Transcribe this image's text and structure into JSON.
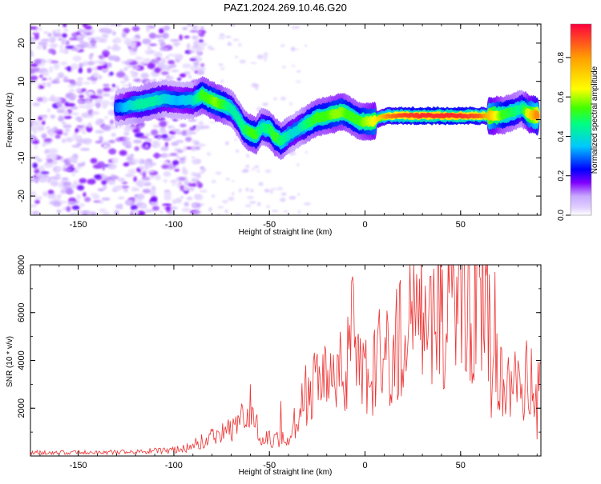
{
  "title": "PAZ1.2024.269.10.46.G20",
  "chart_data": [
    {
      "type": "heatmap",
      "xlabel": "Height of straight line (km)",
      "ylabel": "Frequency (Hz)",
      "xlim": [
        -175,
        92
      ],
      "ylim": [
        -25,
        25
      ],
      "xticks": [
        -150,
        -100,
        -50,
        0,
        50
      ],
      "yticks": [
        -20,
        -10,
        0,
        10,
        20
      ],
      "grid": false,
      "colorbar": {
        "label": "Normalized spectral amplitude",
        "range": [
          0,
          0.97
        ],
        "ticks": [
          "0.0",
          "0.2",
          "0.4",
          "0.6",
          "0.8"
        ],
        "colormap": [
          "#ffffff",
          "#c8a8ff",
          "#8000ff",
          "#0000ff",
          "#00c8ff",
          "#00ff80",
          "#40ff00",
          "#ffff00",
          "#ffa000",
          "#ff0040"
        ]
      },
      "ridge_points": [
        [
          -130,
          3.0,
          0.3
        ],
        [
          -122,
          3.8,
          0.4
        ],
        [
          -118,
          4.0,
          0.45
        ],
        [
          -110,
          5.0,
          0.45
        ],
        [
          -105,
          5.5,
          0.4
        ],
        [
          -98,
          5.0,
          0.35
        ],
        [
          -90,
          5.0,
          0.4
        ],
        [
          -85,
          6.5,
          0.55
        ],
        [
          -82,
          5.5,
          0.55
        ],
        [
          -78,
          4.5,
          0.6
        ],
        [
          -75,
          4.0,
          0.55
        ],
        [
          -70,
          3.0,
          0.45
        ],
        [
          -66,
          0.0,
          0.45
        ],
        [
          -63,
          -2.5,
          0.5
        ],
        [
          -60,
          -3.5,
          0.55
        ],
        [
          -57,
          -4.0,
          0.55
        ],
        [
          -54,
          -2.0,
          0.45
        ],
        [
          -50,
          -2.5,
          0.5
        ],
        [
          -47,
          -4.5,
          0.55
        ],
        [
          -44,
          -5.5,
          0.5
        ],
        [
          -41,
          -4.5,
          0.45
        ],
        [
          -38,
          -3.5,
          0.4
        ],
        [
          -35,
          -2.5,
          0.4
        ],
        [
          -30,
          -1.0,
          0.5
        ],
        [
          -25,
          0.5,
          0.55
        ],
        [
          -20,
          1.0,
          0.55
        ],
        [
          -16,
          1.5,
          0.6
        ],
        [
          -12,
          2.0,
          0.6
        ],
        [
          -9,
          1.5,
          0.55
        ],
        [
          -6,
          0.5,
          0.55
        ],
        [
          -3,
          -0.5,
          0.55
        ],
        [
          0,
          -0.5,
          0.6
        ],
        [
          4,
          -0.5,
          0.65
        ],
        [
          8,
          0.5,
          0.75
        ],
        [
          12,
          1.0,
          0.85
        ],
        [
          20,
          1.0,
          0.92
        ],
        [
          30,
          1.0,
          0.95
        ],
        [
          40,
          1.0,
          0.95
        ],
        [
          50,
          1.0,
          0.95
        ],
        [
          60,
          1.0,
          0.9
        ],
        [
          66,
          1.0,
          0.75
        ],
        [
          72,
          1.2,
          0.55
        ],
        [
          78,
          2.0,
          0.5
        ],
        [
          82,
          3.0,
          0.45
        ],
        [
          86,
          1.5,
          0.7
        ],
        [
          90,
          1.0,
          0.85
        ]
      ]
    },
    {
      "type": "line",
      "xlabel": "Height of straight line (km)",
      "ylabel": "SNR (10 * v/v)",
      "xlim": [
        -175,
        92
      ],
      "ylim": [
        0,
        8000
      ],
      "xticks": [
        -150,
        -100,
        -50,
        0,
        50
      ],
      "yticks": [
        2000,
        4000,
        6000,
        8000
      ],
      "grid": false,
      "color": "#ee3333",
      "envelope": [
        [
          -175,
          150
        ],
        [
          -150,
          150
        ],
        [
          -120,
          180
        ],
        [
          -100,
          250
        ],
        [
          -95,
          300
        ],
        [
          -90,
          450
        ],
        [
          -85,
          600
        ],
        [
          -80,
          800
        ],
        [
          -75,
          900
        ],
        [
          -70,
          1200
        ],
        [
          -65,
          1400
        ],
        [
          -60,
          1800
        ],
        [
          -57,
          1200
        ],
        [
          -54,
          900
        ],
        [
          -50,
          700
        ],
        [
          -45,
          700
        ],
        [
          -40,
          600
        ],
        [
          -37,
          1500
        ],
        [
          -33,
          2500
        ],
        [
          -30,
          2600
        ],
        [
          -25,
          2900
        ],
        [
          -20,
          3200
        ],
        [
          -15,
          3600
        ],
        [
          -10,
          4000
        ],
        [
          -6,
          5500
        ],
        [
          -3,
          3200
        ],
        [
          0,
          3400
        ],
        [
          5,
          3800
        ],
        [
          10,
          4200
        ],
        [
          15,
          4600
        ],
        [
          20,
          5000
        ],
        [
          25,
          5300
        ],
        [
          30,
          5600
        ],
        [
          35,
          5900
        ],
        [
          40,
          6100
        ],
        [
          45,
          6200
        ],
        [
          50,
          6300
        ],
        [
          55,
          6400
        ],
        [
          60,
          6600
        ],
        [
          63,
          6900
        ],
        [
          65,
          6000
        ],
        [
          68,
          5500
        ],
        [
          70,
          3000
        ],
        [
          75,
          2800
        ],
        [
          80,
          3000
        ],
        [
          85,
          3200
        ],
        [
          90,
          3000
        ],
        [
          92,
          3000
        ]
      ],
      "spikes": [
        [
          -60,
          3000
        ],
        [
          -44,
          2300
        ],
        [
          -7,
          7300
        ],
        [
          -6,
          7100
        ],
        [
          -5,
          5000
        ],
        [
          48,
          7500
        ],
        [
          52,
          7900
        ],
        [
          60,
          7500
        ],
        [
          63,
          8000
        ],
        [
          65,
          7600
        ],
        [
          68,
          7700
        ],
        [
          66,
          1600
        ],
        [
          90,
          700
        ]
      ]
    }
  ]
}
